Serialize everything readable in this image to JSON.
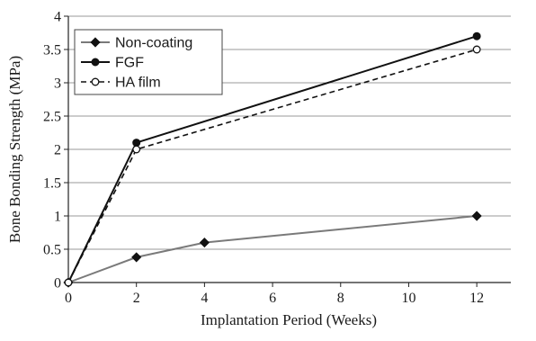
{
  "chart_data": {
    "type": "line",
    "xlabel": "Implantation Period (Weeks)",
    "ylabel": "Bone Bonding Strength (MPa)",
    "xlim": [
      0,
      13
    ],
    "ylim": [
      0,
      4
    ],
    "xticks": [
      0,
      2,
      4,
      6,
      8,
      10,
      12
    ],
    "yticks": [
      0,
      0.5,
      1,
      1.5,
      2,
      2.5,
      3,
      3.5,
      4
    ],
    "xtick_labels": [
      "0",
      "2",
      "4",
      "6",
      "8",
      "10",
      "12"
    ],
    "ytick_labels": [
      "0",
      "0.5",
      "1",
      "1.5",
      "2",
      "2.5",
      "3",
      "3.5",
      "4"
    ],
    "grid": "horizontal",
    "legend_position": "top-left",
    "series": [
      {
        "name": "Non-coating",
        "color": "#7a7a7a",
        "line_style": "solid",
        "marker": "diamond-filled",
        "x": [
          0,
          2,
          4,
          12
        ],
        "y": [
          0,
          0.38,
          0.6,
          1.0
        ]
      },
      {
        "name": "FGF",
        "color": "#111111",
        "line_style": "solid",
        "marker": "circle-filled",
        "x": [
          0,
          2,
          12
        ],
        "y": [
          0,
          2.1,
          3.7
        ]
      },
      {
        "name": "HA film",
        "color": "#111111",
        "line_style": "dashed",
        "marker": "circle-open",
        "x": [
          0,
          2,
          12
        ],
        "y": [
          0,
          2.0,
          3.5
        ]
      }
    ]
  }
}
